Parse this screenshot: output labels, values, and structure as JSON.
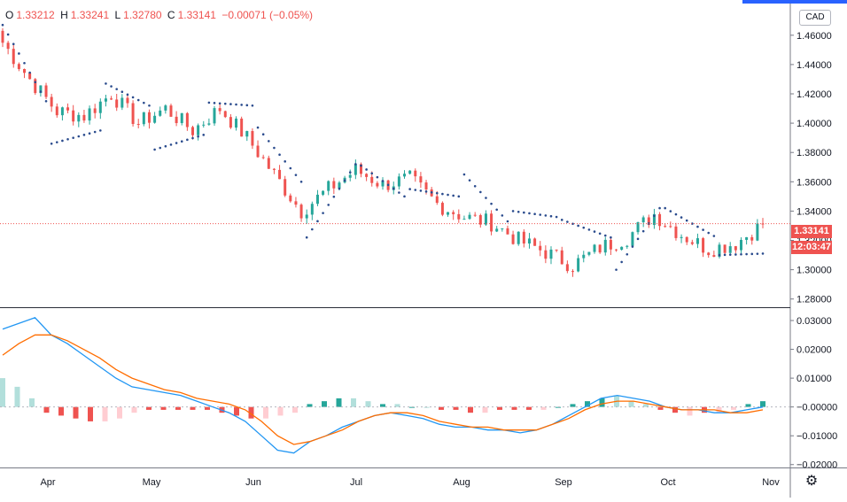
{
  "legend": {
    "open_label": "O",
    "open": "1.33212",
    "high_label": "H",
    "high": "1.33241",
    "low_label": "L",
    "low": "1.32780",
    "close_label": "C",
    "close": "1.33141",
    "change": "−0.00071 (−0.05%)"
  },
  "currency_badge": "CAD",
  "last_price_tag": "1.33141",
  "countdown_tag": "12:03:47",
  "settings_icon": "gear-icon",
  "colors": {
    "up": "#26a69a",
    "down": "#ef5350",
    "sar": "#2a4b8d",
    "macd": "#2196f3",
    "signal": "#ff6d00",
    "hist_up_strong": "#26a69a",
    "hist_up_weak": "#b2dfdb",
    "hist_down_strong": "#ef5350",
    "hist_down_weak": "#ffcdd2"
  },
  "chart_data": [
    {
      "type": "candlestick",
      "price_axis": {
        "ylim": [
          1.275,
          1.478
        ],
        "ticks": [
          "1.46000",
          "1.44000",
          "1.42000",
          "1.40000",
          "1.38000",
          "1.36000",
          "1.34000",
          "1.32000",
          "1.30000",
          "1.28000"
        ],
        "tick_values": [
          1.46,
          1.44,
          1.42,
          1.4,
          1.38,
          1.36,
          1.34,
          1.32,
          1.3,
          1.28
        ]
      },
      "time_axis": {
        "labels": [
          "Apr",
          "May",
          "Jun",
          "Jul",
          "Aug",
          "Sep",
          "Oct",
          "Nov"
        ]
      },
      "last_close": 1.33141,
      "bars_per_week": 5,
      "weekly_path": [
        1.455,
        1.43,
        1.408,
        1.405,
        1.42,
        1.4,
        1.41,
        1.395,
        1.41,
        1.39,
        1.365,
        1.34,
        1.355,
        1.368,
        1.358,
        1.362,
        1.345,
        1.336,
        1.332,
        1.32,
        1.312,
        1.303,
        1.315,
        1.322,
        1.338,
        1.324,
        1.314,
        1.318,
        1.331
      ],
      "parabolic_sar": [
        {
          "from": 1.467,
          "to": 1.415
        },
        {
          "from": 1.386,
          "to": 1.395
        },
        {
          "from": 1.427,
          "to": 1.412
        },
        {
          "from": 1.382,
          "to": 1.392
        },
        {
          "from": 1.414,
          "to": 1.412
        },
        {
          "from": 1.397,
          "to": 1.36
        },
        {
          "from": 1.322,
          "to": 1.372
        },
        {
          "from": 1.371,
          "to": 1.35
        },
        {
          "from": 1.355,
          "to": 1.35
        },
        {
          "from": 1.365,
          "to": 1.333
        },
        {
          "from": 1.34,
          "to": 1.336
        },
        {
          "from": 1.334,
          "to": 1.322
        },
        {
          "from": 1.3,
          "to": 1.342
        },
        {
          "from": 1.342,
          "to": 1.323
        },
        {
          "from": 1.31,
          "to": 1.311
        }
      ]
    },
    {
      "type": "macd",
      "axis": {
        "ylim": [
          -0.021,
          0.034
        ],
        "ticks": [
          "0.03000",
          "0.02000",
          "0.01000",
          "−0.00000",
          "−0.01000",
          "−0.02000"
        ],
        "tick_values": [
          0.03,
          0.02,
          0.01,
          0.0,
          -0.01,
          -0.02
        ]
      },
      "series": [
        {
          "color": "#2196f3",
          "values": [
            0.027,
            0.029,
            0.031,
            0.025,
            0.022,
            0.018,
            0.014,
            0.01,
            0.007,
            0.006,
            0.005,
            0.004,
            0.002,
            0.0,
            -0.002,
            -0.005,
            -0.01,
            -0.015,
            -0.016,
            -0.012,
            -0.01,
            -0.007,
            -0.005,
            -0.003,
            -0.002,
            -0.003,
            -0.004,
            -0.006,
            -0.007,
            -0.007,
            -0.008,
            -0.008,
            -0.009,
            -0.008,
            -0.006,
            -0.003,
            0.0,
            0.003,
            0.004,
            0.003,
            0.002,
            0.0,
            -0.001,
            -0.001,
            -0.002,
            -0.002,
            -0.001,
            0.0
          ]
        },
        {
          "color": "#ff6d00",
          "values": [
            0.018,
            0.022,
            0.025,
            0.025,
            0.023,
            0.02,
            0.017,
            0.013,
            0.01,
            0.008,
            0.006,
            0.005,
            0.003,
            0.002,
            0.001,
            -0.001,
            -0.005,
            -0.01,
            -0.013,
            -0.012,
            -0.01,
            -0.008,
            -0.005,
            -0.003,
            -0.002,
            -0.002,
            -0.003,
            -0.005,
            -0.006,
            -0.007,
            -0.007,
            -0.008,
            -0.008,
            -0.008,
            -0.006,
            -0.004,
            -0.001,
            0.001,
            0.002,
            0.002,
            0.001,
            0.0,
            -0.001,
            -0.001,
            -0.001,
            -0.002,
            -0.002,
            -0.001
          ]
        }
      ],
      "histogram": [
        0.01,
        0.007,
        0.003,
        -0.002,
        -0.003,
        -0.004,
        -0.005,
        -0.005,
        -0.004,
        -0.002,
        -0.001,
        -0.001,
        -0.001,
        -0.001,
        -0.001,
        -0.002,
        -0.003,
        -0.004,
        -0.004,
        -0.003,
        -0.002,
        0.001,
        0.002,
        0.003,
        0.003,
        0.002,
        0.001,
        0.001,
        0.0,
        0.0,
        -0.001,
        -0.001,
        -0.002,
        -0.002,
        -0.001,
        -0.001,
        -0.001,
        -0.001,
        0.0,
        0.001,
        0.002,
        0.003,
        0.004,
        0.002,
        0.001,
        -0.001,
        -0.002,
        -0.003,
        -0.002,
        -0.002,
        -0.001,
        0.001,
        0.002
      ]
    }
  ]
}
